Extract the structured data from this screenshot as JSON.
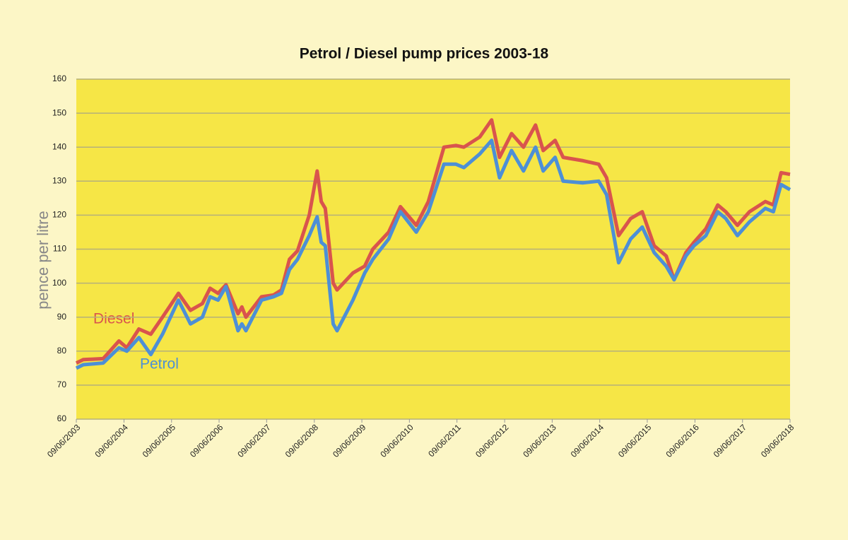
{
  "chart_data": {
    "type": "line",
    "title": "Petrol / Diesel pump prices 2003-18",
    "y_label": "pence per litre",
    "x": [
      "2003-06-09",
      "2003-08",
      "2004-01",
      "2004-05",
      "2004-07",
      "2004-10",
      "2005-01",
      "2005-04",
      "2005-08",
      "2005-11",
      "2006-02",
      "2006-04",
      "2006-06",
      "2006-08",
      "2006-11",
      "2006-12",
      "2007-01",
      "2007-05",
      "2007-08",
      "2007-10",
      "2007-12",
      "2008-02",
      "2008-05",
      "2008-07",
      "2008-08",
      "2008-09",
      "2008-11",
      "2008-12",
      "2009-04",
      "2009-07",
      "2009-09",
      "2010-01",
      "2010-04",
      "2010-08",
      "2010-11",
      "2011-03",
      "2011-06",
      "2011-08",
      "2011-12",
      "2012-03",
      "2012-05",
      "2012-08",
      "2012-11",
      "2013-02",
      "2013-04",
      "2013-07",
      "2013-09",
      "2014-02",
      "2014-06",
      "2014-08",
      "2014-11",
      "2015-02",
      "2015-05",
      "2015-08",
      "2015-11",
      "2016-01",
      "2016-04",
      "2016-06",
      "2016-09",
      "2016-12",
      "2017-02",
      "2017-05",
      "2017-08",
      "2017-12",
      "2018-02",
      "2018-04",
      "2018-06-09"
    ],
    "series": [
      {
        "name": "Diesel",
        "color": "#d9544d",
        "values": [
          76.5,
          77.5,
          77.8,
          83,
          81,
          86.5,
          85,
          90,
          97,
          92,
          94,
          98.5,
          97,
          99.5,
          91,
          93,
          90,
          96,
          96.5,
          98,
          107,
          109.5,
          120,
          133,
          124,
          122,
          100,
          98,
          103,
          105,
          110,
          115,
          122.5,
          117,
          124,
          140,
          140.5,
          140,
          143,
          148,
          137,
          144,
          140,
          146.5,
          139,
          142,
          137,
          136,
          135,
          131,
          114,
          119,
          121,
          111,
          108,
          101,
          109,
          112,
          116,
          123,
          121,
          117,
          121,
          124,
          123,
          132.5,
          132
        ]
      },
      {
        "name": "Petrol",
        "color": "#4d8fd6",
        "values": [
          75,
          76,
          76.5,
          81,
          80,
          84,
          79,
          85,
          95,
          88,
          90,
          96,
          95,
          99,
          86,
          88,
          86,
          95,
          96,
          97,
          104,
          107,
          114,
          119.5,
          112,
          111,
          88,
          86,
          95,
          103,
          107,
          113,
          121,
          115,
          121,
          135,
          135,
          134,
          138,
          142,
          131,
          139,
          133,
          140,
          133,
          137,
          130,
          129.5,
          130,
          126,
          106,
          113,
          116.5,
          109,
          105,
          101,
          108,
          111,
          114,
          121,
          119,
          114,
          118,
          122,
          121,
          129,
          127.5
        ]
      }
    ],
    "xlim": [
      "2003-06-09",
      "2018-06-09"
    ],
    "xticks": [
      {
        "value": "2003-06-09",
        "label": "09/06/2003"
      },
      {
        "value": "2004-06-09",
        "label": "09/06/2004"
      },
      {
        "value": "2005-06-09",
        "label": "09/06/2005"
      },
      {
        "value": "2006-06-09",
        "label": "09/06/2006"
      },
      {
        "value": "2007-06-09",
        "label": "09/06/2007"
      },
      {
        "value": "2008-06-09",
        "label": "09/06/2008"
      },
      {
        "value": "2009-06-09",
        "label": "09/06/2009"
      },
      {
        "value": "2010-06-09",
        "label": "09/06/2010"
      },
      {
        "value": "2011-06-09",
        "label": "09/06/2011"
      },
      {
        "value": "2012-06-09",
        "label": "09/06/2012"
      },
      {
        "value": "2013-06-09",
        "label": "09/06/2013"
      },
      {
        "value": "2014-06-09",
        "label": "09/06/2014"
      },
      {
        "value": "2015-06-09",
        "label": "09/06/2015"
      },
      {
        "value": "2016-06-09",
        "label": "09/06/2016"
      },
      {
        "value": "2017-06-09",
        "label": "09/06/2017"
      },
      {
        "value": "2018-06-09",
        "label": "09/06/2018"
      }
    ],
    "ylim": [
      60,
      160
    ],
    "yticks": [
      60,
      70,
      80,
      90,
      100,
      110,
      120,
      130,
      140,
      150,
      160
    ],
    "grid": true
  }
}
